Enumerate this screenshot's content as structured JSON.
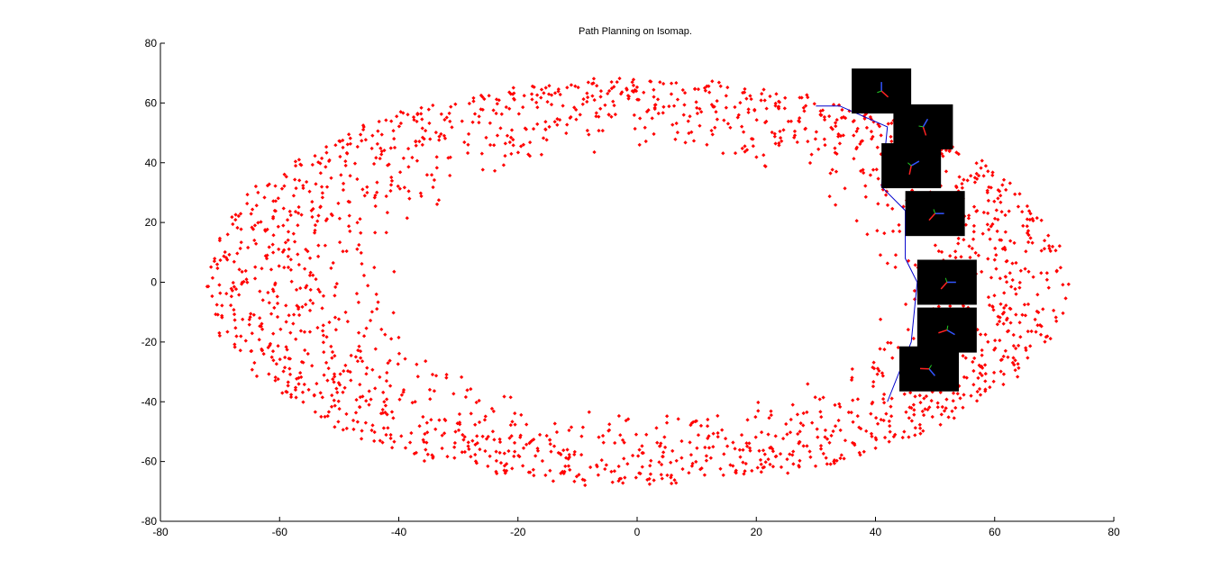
{
  "chart_data": {
    "type": "scatter",
    "title": "Path Planning on Isomap.",
    "xlabel": "",
    "ylabel": "",
    "xlim": [
      -80,
      80
    ],
    "ylim": [
      -80,
      80
    ],
    "x_ticks": [
      -80,
      -60,
      -40,
      -20,
      0,
      20,
      40,
      60,
      80
    ],
    "y_ticks": [
      -80,
      -60,
      -40,
      -20,
      0,
      20,
      40,
      60,
      80
    ],
    "x_tick_labels": [
      "-80",
      "-60",
      "-40",
      "-20",
      "0",
      "20",
      "40",
      "60",
      "80"
    ],
    "y_tick_labels": [
      "-80",
      "-60",
      "-40",
      "-20",
      "0",
      "20",
      "40",
      "60",
      "80"
    ],
    "grid": false,
    "box": false,
    "scatter_series": {
      "marker": "dot",
      "color": "#ff0000",
      "shape": "elliptical ring",
      "center": [
        0,
        0
      ],
      "outer_semi_axes": [
        72,
        68
      ],
      "inner_semi_axes": [
        40,
        43
      ],
      "approx_point_count": 2000
    },
    "path": {
      "color": "#0000cc",
      "points": [
        [
          30,
          59
        ],
        [
          34,
          59
        ],
        [
          42,
          52
        ],
        [
          41,
          32
        ],
        [
          45,
          24
        ],
        [
          45,
          8
        ],
        [
          47,
          0
        ],
        [
          46,
          -20
        ],
        [
          42,
          -40
        ]
      ]
    },
    "thumbnails": {
      "background": "#000000",
      "items": [
        {
          "center": [
            41,
            64
          ],
          "angle": -90
        },
        {
          "center": [
            48,
            52
          ],
          "angle": -60
        },
        {
          "center": [
            46,
            39
          ],
          "angle": -30
        },
        {
          "center": [
            50,
            23
          ],
          "angle": 0
        },
        {
          "center": [
            52,
            0
          ],
          "angle": 0
        },
        {
          "center": [
            52,
            -16
          ],
          "angle": 30
        },
        {
          "center": [
            49,
            -29
          ],
          "angle": 50
        }
      ]
    }
  }
}
